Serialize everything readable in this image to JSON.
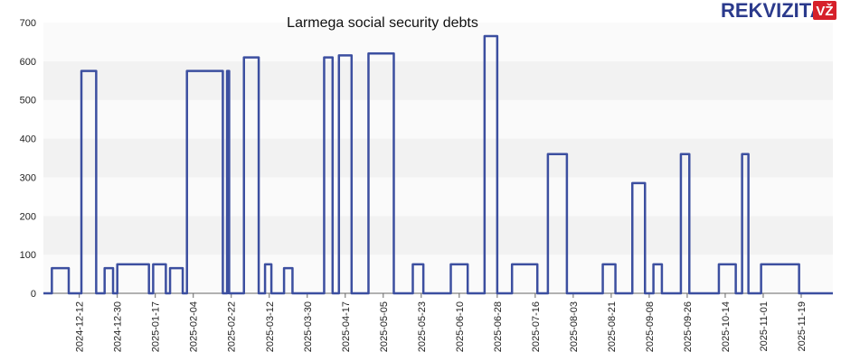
{
  "brand": {
    "name": "REKVIZITAI",
    "badge": "VŽ",
    "text_color": "#2b3a8c",
    "badge_color": "#d6202a"
  },
  "chart_data": {
    "type": "line",
    "title": "Larmega social security debts",
    "xlabel": "",
    "ylabel": "",
    "ylim": [
      0,
      700
    ],
    "yticks": [
      0,
      100,
      200,
      300,
      400,
      500,
      600,
      700
    ],
    "x_range": [
      "2024-11-25",
      "2025-12-04"
    ],
    "xticks": [
      "2024-12-12",
      "2024-12-30",
      "2025-01-17",
      "2025-02-04",
      "2025-02-22",
      "2025-03-12",
      "2025-03-30",
      "2025-04-17",
      "2025-05-05",
      "2025-05-23",
      "2025-06-10",
      "2025-06-28",
      "2025-07-16",
      "2025-08-03",
      "2025-08-21",
      "2025-09-08",
      "2025-09-26",
      "2025-10-14",
      "2025-11-01",
      "2025-11-19"
    ],
    "grid": "horizontal-bands",
    "line_color": "#3c4fa0",
    "band_colors": [
      "#f2f2f2",
      "#fafafa"
    ],
    "series": [
      {
        "x": [
          "2024-11-25",
          "2024-11-29",
          "2024-11-29",
          "2024-12-07",
          "2024-12-07",
          "2024-12-13",
          "2024-12-13",
          "2024-12-20",
          "2024-12-20",
          "2024-12-24",
          "2024-12-24",
          "2024-12-28",
          "2024-12-28",
          "2024-12-30",
          "2024-12-30",
          "2025-01-14",
          "2025-01-14",
          "2025-01-16",
          "2025-01-16",
          "2025-01-22",
          "2025-01-22",
          "2025-01-24",
          "2025-01-24",
          "2025-01-30",
          "2025-01-30",
          "2025-02-01",
          "2025-02-01",
          "2025-02-18",
          "2025-02-18",
          "2025-02-20",
          "2025-02-20",
          "2025-02-21",
          "2025-02-21",
          "2025-02-28",
          "2025-02-28",
          "2025-03-07",
          "2025-03-07",
          "2025-03-10",
          "2025-03-10",
          "2025-03-13",
          "2025-03-13",
          "2025-03-19",
          "2025-03-19",
          "2025-03-23",
          "2025-03-23",
          "2025-04-07",
          "2025-04-07",
          "2025-04-11",
          "2025-04-11",
          "2025-04-14",
          "2025-04-14",
          "2025-04-20",
          "2025-04-20",
          "2025-04-28",
          "2025-04-28",
          "2025-05-10",
          "2025-05-10",
          "2025-05-19",
          "2025-05-19",
          "2025-05-24",
          "2025-05-24",
          "2025-06-06",
          "2025-06-06",
          "2025-06-14",
          "2025-06-14",
          "2025-06-22",
          "2025-06-22",
          "2025-06-28",
          "2025-06-28",
          "2025-07-05",
          "2025-07-05",
          "2025-07-17",
          "2025-07-17",
          "2025-07-22",
          "2025-07-22",
          "2025-07-31",
          "2025-07-31",
          "2025-08-17",
          "2025-08-17",
          "2025-08-23",
          "2025-08-23",
          "2025-08-31",
          "2025-08-31",
          "2025-09-06",
          "2025-09-06",
          "2025-09-10",
          "2025-09-10",
          "2025-09-14",
          "2025-09-14",
          "2025-09-23",
          "2025-09-23",
          "2025-09-27",
          "2025-09-27",
          "2025-10-11",
          "2025-10-11",
          "2025-10-19",
          "2025-10-19",
          "2025-10-22",
          "2025-10-22",
          "2025-10-25",
          "2025-10-25",
          "2025-10-31",
          "2025-10-31",
          "2025-11-18",
          "2025-11-18",
          "2025-12-04"
        ],
        "values": [
          0,
          0,
          65,
          65,
          0,
          0,
          575,
          575,
          0,
          0,
          65,
          65,
          0,
          0,
          75,
          75,
          0,
          0,
          75,
          75,
          0,
          0,
          65,
          65,
          0,
          0,
          575,
          575,
          0,
          0,
          575,
          575,
          0,
          0,
          610,
          610,
          0,
          0,
          75,
          75,
          0,
          0,
          65,
          65,
          0,
          0,
          610,
          610,
          0,
          0,
          615,
          615,
          0,
          0,
          620,
          620,
          0,
          0,
          75,
          75,
          0,
          0,
          75,
          75,
          0,
          0,
          665,
          665,
          0,
          0,
          75,
          75,
          0,
          0,
          360,
          360,
          0,
          0,
          75,
          75,
          0,
          0,
          285,
          285,
          0,
          0,
          75,
          75,
          0,
          0,
          360,
          360,
          0,
          0,
          75,
          75,
          0,
          0,
          360,
          360,
          0,
          0,
          75,
          75,
          0,
          0
        ]
      }
    ]
  }
}
